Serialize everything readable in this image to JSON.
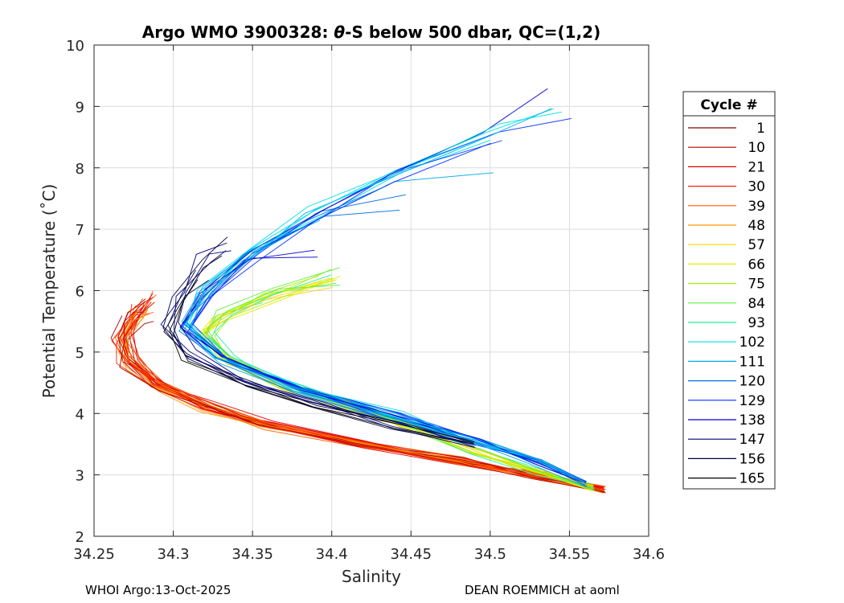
{
  "chart_data": {
    "type": "line",
    "title_parts": {
      "prefix": "Argo WMO 3900328: ",
      "symbol": "θ",
      "suffix": "-S below 500 dbar,  QC=(1,2)"
    },
    "xlabel": "Salinity",
    "ylabel": "Potential Temperature (˚C)",
    "xlim": [
      34.25,
      34.6
    ],
    "ylim": [
      2,
      10
    ],
    "xticks": [
      34.25,
      34.3,
      34.35,
      34.4,
      34.45,
      34.5,
      34.55,
      34.6
    ],
    "xtick_labels": [
      "34.25",
      "34.3",
      "34.35",
      "34.4",
      "34.45",
      "34.5",
      "34.55",
      "34.6"
    ],
    "yticks": [
      2,
      3,
      4,
      5,
      6,
      7,
      8,
      9,
      10
    ],
    "ytick_labels": [
      "2",
      "3",
      "4",
      "5",
      "6",
      "7",
      "8",
      "9",
      "10"
    ],
    "grid": true,
    "legend": {
      "title": "Cycle #",
      "placement": "right-outside",
      "entries": [
        {
          "label": "1",
          "color": "#800000"
        },
        {
          "label": "10",
          "color": "#b00000"
        },
        {
          "label": "21",
          "color": "#e00000"
        },
        {
          "label": "30",
          "color": "#ff2000"
        },
        {
          "label": "39",
          "color": "#ff5a00"
        },
        {
          "label": "48",
          "color": "#ff9800"
        },
        {
          "label": "57",
          "color": "#ffd200"
        },
        {
          "label": "66",
          "color": "#e6ee00"
        },
        {
          "label": "75",
          "color": "#a8f000"
        },
        {
          "label": "84",
          "color": "#5cf040"
        },
        {
          "label": "93",
          "color": "#20f0a0"
        },
        {
          "label": "102",
          "color": "#00e0e8"
        },
        {
          "label": "111",
          "color": "#00a8f0"
        },
        {
          "label": "120",
          "color": "#0070e0"
        },
        {
          "label": "129",
          "color": "#0030ff"
        },
        {
          "label": "138",
          "color": "#0000d0"
        },
        {
          "label": "147",
          "color": "#00007a"
        },
        {
          "label": "156",
          "color": "#000040"
        },
        {
          "label": "165",
          "color": "#000000"
        }
      ]
    },
    "profile_groups": [
      {
        "name": "early cycles (red/orange)",
        "colors": [
          "#b00000",
          "#e00000",
          "#ff2000",
          "#ff5a00",
          "#ff9800"
        ],
        "count": 26,
        "top_temp": [
          5.5,
          6.1
        ],
        "points": [
          [
            34.572,
            2.76
          ],
          [
            34.53,
            2.98
          ],
          [
            34.48,
            3.22
          ],
          [
            34.42,
            3.48
          ],
          [
            34.36,
            3.8
          ],
          [
            34.32,
            4.1
          ],
          [
            34.29,
            4.45
          ],
          [
            34.272,
            4.85
          ],
          [
            34.268,
            5.2
          ],
          [
            34.275,
            5.55
          ],
          [
            34.283,
            5.85
          ]
        ]
      },
      {
        "name": "middle cycles (yellow/green)",
        "colors": [
          "#ffd200",
          "#e6ee00",
          "#a8f000",
          "#5cf040",
          "#20f0a0"
        ],
        "count": 14,
        "top_temp": [
          5.8,
          6.6
        ],
        "points": [
          [
            34.565,
            2.8
          ],
          [
            34.53,
            3.05
          ],
          [
            34.49,
            3.4
          ],
          [
            34.45,
            3.8
          ],
          [
            34.41,
            4.15
          ],
          [
            34.37,
            4.5
          ],
          [
            34.335,
            4.9
          ],
          [
            34.32,
            5.3
          ],
          [
            34.33,
            5.6
          ],
          [
            34.36,
            5.95
          ],
          [
            34.4,
            6.3
          ]
        ]
      },
      {
        "name": "later cycles (cyan/blue)",
        "colors": [
          "#00e0e8",
          "#00a8f0",
          "#0070e0",
          "#0030ff",
          "#0000d0"
        ],
        "count": 18,
        "top_temp": [
          6.5,
          9.35
        ],
        "points": [
          [
            34.56,
            2.85
          ],
          [
            34.53,
            3.2
          ],
          [
            34.49,
            3.55
          ],
          [
            34.44,
            3.95
          ],
          [
            34.38,
            4.4
          ],
          [
            34.33,
            4.9
          ],
          [
            34.308,
            5.4
          ],
          [
            34.32,
            5.95
          ],
          [
            34.35,
            6.6
          ],
          [
            34.39,
            7.25
          ],
          [
            34.44,
            7.9
          ],
          [
            34.5,
            8.6
          ],
          [
            34.545,
            9.3
          ]
        ]
      },
      {
        "name": "latest cycles (dark navy/black)",
        "colors": [
          "#00007a",
          "#000040",
          "#000000"
        ],
        "count": 8,
        "top_temp": [
          6.0,
          7.1
        ],
        "points": [
          [
            34.49,
            3.5
          ],
          [
            34.44,
            3.8
          ],
          [
            34.39,
            4.15
          ],
          [
            34.345,
            4.5
          ],
          [
            34.31,
            4.95
          ],
          [
            34.298,
            5.4
          ],
          [
            34.305,
            5.9
          ],
          [
            34.32,
            6.5
          ],
          [
            34.335,
            7.0
          ]
        ]
      }
    ]
  },
  "footer": {
    "left": "WHOI Argo:13-Oct-2025",
    "right": "DEAN ROEMMICH at aoml"
  }
}
